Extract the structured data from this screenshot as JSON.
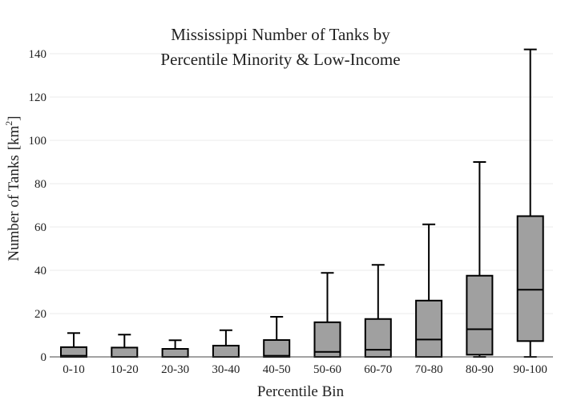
{
  "chart_data": {
    "type": "box",
    "title": [
      "Mississippi Number of Tanks by",
      "Percentile Minority & Low-Income"
    ],
    "xlabel": "Percentile Bin",
    "ylabel": "Number of Tanks",
    "ylabel_unit_base": "km",
    "ylabel_unit_exp": "2",
    "ylim": [
      0,
      150
    ],
    "yticks": [
      0,
      20,
      40,
      60,
      80,
      100,
      120,
      140
    ],
    "grid": true,
    "categories": [
      "0-10",
      "10-20",
      "20-30",
      "30-40",
      "40-50",
      "50-60",
      "60-70",
      "70-80",
      "80-90",
      "90-100"
    ],
    "boxes": [
      {
        "min": 0,
        "q1": 0,
        "median": 0.5,
        "q3": 4.5,
        "max": 11
      },
      {
        "min": 0,
        "q1": 0,
        "median": 0,
        "q3": 4.3,
        "max": 10.3
      },
      {
        "min": 0,
        "q1": 0,
        "median": 0,
        "q3": 3.7,
        "max": 7.7
      },
      {
        "min": 0,
        "q1": 0,
        "median": 0,
        "q3": 5.2,
        "max": 12.3
      },
      {
        "min": 0,
        "q1": 0,
        "median": 0.5,
        "q3": 7.8,
        "max": 18.5
      },
      {
        "min": 0,
        "q1": 0,
        "median": 2.3,
        "q3": 16,
        "max": 38.8
      },
      {
        "min": 0,
        "q1": 0,
        "median": 3.3,
        "q3": 17.5,
        "max": 42.5
      },
      {
        "min": 0,
        "q1": 0,
        "median": 8,
        "q3": 26,
        "max": 61.2
      },
      {
        "min": 0,
        "q1": 1,
        "median": 12.8,
        "q3": 37.5,
        "max": 90
      },
      {
        "min": 0,
        "q1": 7.3,
        "median": 31,
        "q3": 65,
        "max": 142
      }
    ]
  }
}
